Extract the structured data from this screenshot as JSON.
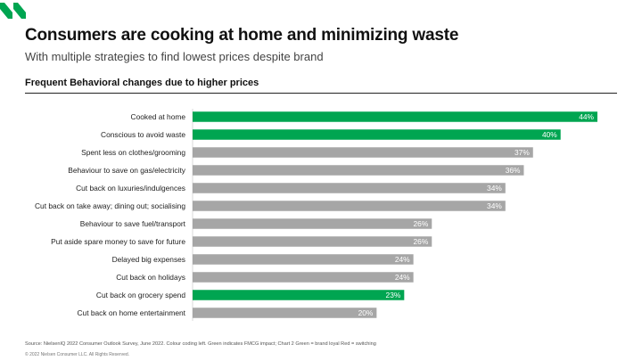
{
  "header": {
    "title": "Consumers are cooking at home and minimizing waste",
    "subtitle": "With multiple strategies to find lowest prices despite brand",
    "section_heading": "Frequent Behavioral changes due to higher prices"
  },
  "footer": {
    "source": "Source: NielsenIQ 2022 Consumer Outlook Survey, June 2022. Colour coding left. Green indicates FMCG impact; Chart 2 Green = brand loyal Red = switching",
    "copyright": "© 2022 Nielsen Consumer LLC. All Rights Reserved."
  },
  "colors": {
    "brand_green": "#00a551",
    "neutral_gray": "#a6a6a6"
  },
  "logo_icon": "nielseniq-logo-icon",
  "chart_data": {
    "type": "bar",
    "orientation": "horizontal",
    "title": "Frequent Behavioral changes due to higher prices",
    "categories": [
      "Cooked at home",
      "Conscious to avoid waste",
      "Spent less on clothes/grooming",
      "Behaviour to save on gas/electricity",
      "Cut back on luxuries/indulgences",
      "Cut back on take away; dining out; socialising",
      "Behaviour to save fuel/transport",
      "Put aside spare money to save for future",
      "Delayed big expenses",
      "Cut back on holidays",
      "Cut back on grocery spend",
      "Cut back on home entertainment"
    ],
    "values": [
      44,
      40,
      37,
      36,
      34,
      34,
      26,
      26,
      24,
      24,
      23,
      20
    ],
    "value_labels": [
      "44%",
      "40%",
      "37%",
      "36%",
      "34%",
      "34%",
      "26%",
      "26%",
      "24%",
      "24%",
      "23%",
      "20%"
    ],
    "highlight": [
      true,
      true,
      false,
      false,
      false,
      false,
      false,
      false,
      false,
      false,
      true,
      false
    ],
    "xlim": [
      0,
      44
    ],
    "grid": false,
    "legend": "none"
  }
}
